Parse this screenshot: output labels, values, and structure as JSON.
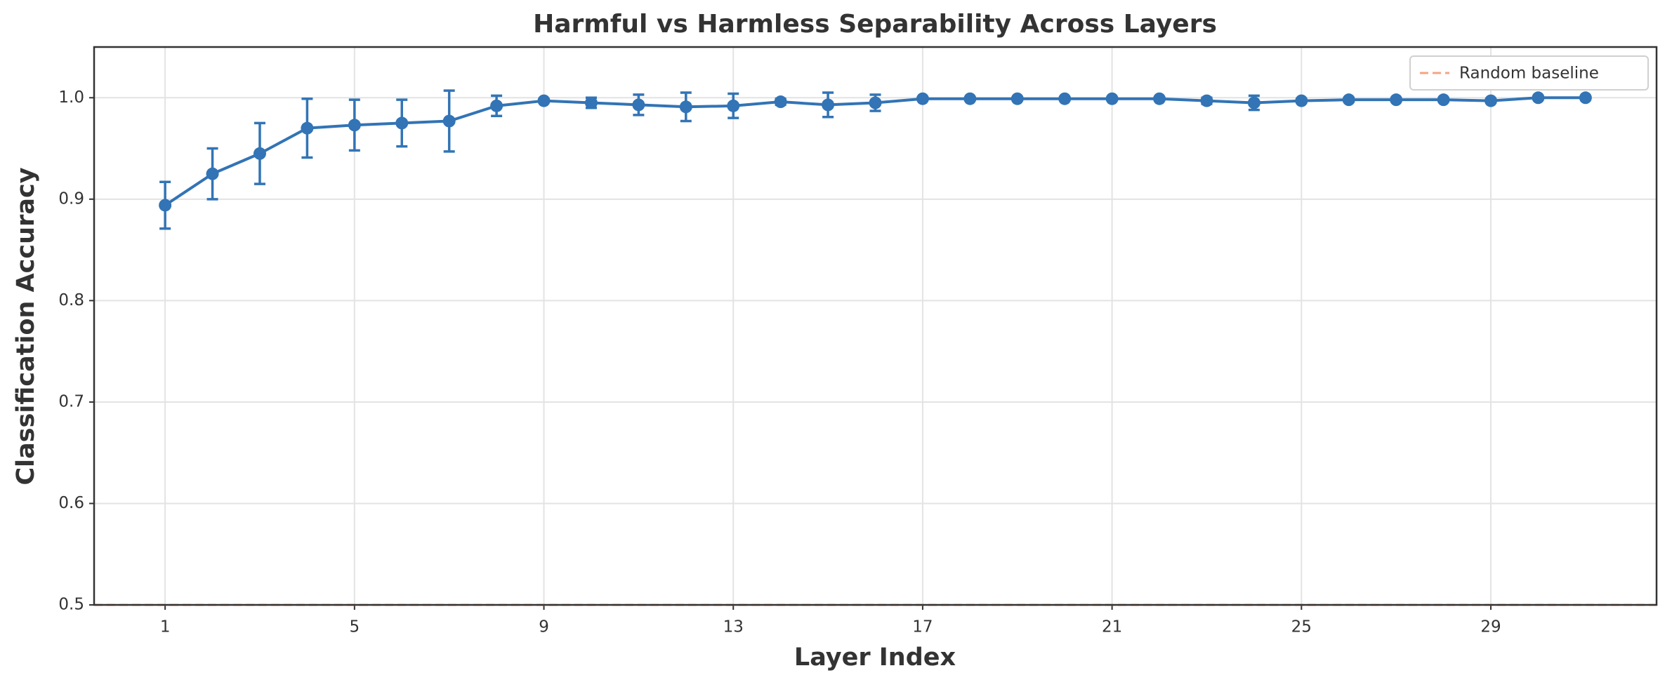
{
  "chart_data": {
    "type": "line",
    "title": "Harmful vs Harmless Separability Across Layers",
    "x_label": "Layer Index",
    "y_label": "Classification Accuracy",
    "x": [
      1,
      2,
      3,
      4,
      5,
      6,
      7,
      8,
      9,
      10,
      11,
      12,
      13,
      14,
      15,
      16,
      17,
      18,
      19,
      20,
      21,
      22,
      23,
      24,
      25,
      26,
      27,
      28,
      29,
      30,
      31
    ],
    "series": [
      {
        "color": "#3274b5",
        "values": [
          0.894,
          0.925,
          0.945,
          0.97,
          0.973,
          0.975,
          0.977,
          0.992,
          0.997,
          0.995,
          0.993,
          0.991,
          0.992,
          0.996,
          0.993,
          0.995,
          0.999,
          0.999,
          0.999,
          0.999,
          0.999,
          0.999,
          0.997,
          0.995,
          0.997,
          0.998,
          0.998,
          0.998,
          0.997,
          1.0,
          1.0
        ],
        "errors": [
          0.023,
          0.025,
          0.03,
          0.029,
          0.025,
          0.023,
          0.03,
          0.01,
          0.002,
          0.005,
          0.01,
          0.014,
          0.012,
          0.003,
          0.012,
          0.008,
          0.001,
          0.001,
          0.001,
          0.001,
          0.001,
          0.001,
          0.003,
          0.007,
          0.002,
          0.002,
          0.001,
          0.001,
          0.002,
          0.0,
          0.0
        ]
      }
    ],
    "baseline": {
      "name": "Random baseline",
      "value": 0.5,
      "color": "#f4a582"
    },
    "xlim": [
      -0.5,
      32.5
    ],
    "ylim": [
      0.5,
      1.05
    ],
    "xticks": [
      1,
      5,
      9,
      13,
      17,
      21,
      25,
      29
    ],
    "yticks": [
      {
        "value": 0.5,
        "label": "0.5"
      },
      {
        "value": 0.6,
        "label": "0.6"
      },
      {
        "value": 0.7,
        "label": "0.7"
      },
      {
        "value": 0.8,
        "label": "0.8"
      },
      {
        "value": 0.9,
        "label": "0.9"
      },
      {
        "value": 1.0,
        "label": "1.0"
      }
    ],
    "grid": true,
    "legend": "upper right"
  }
}
